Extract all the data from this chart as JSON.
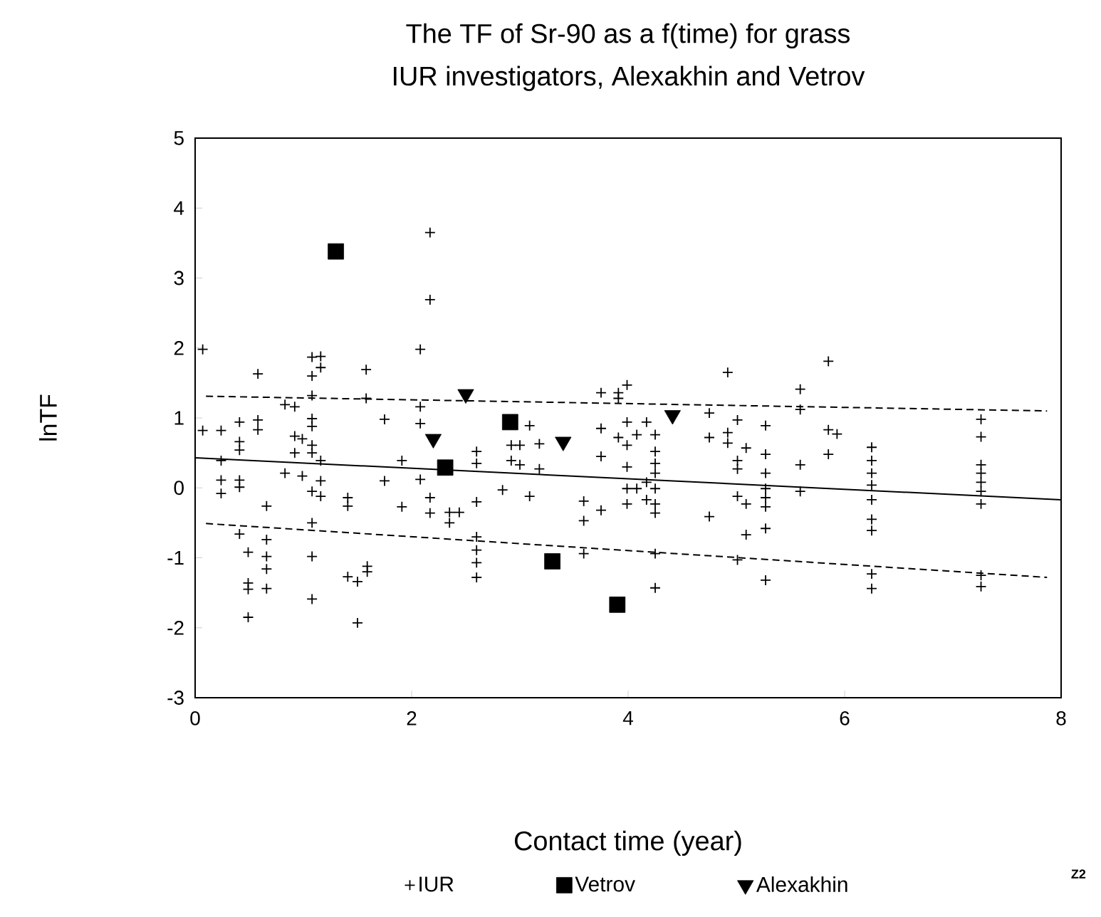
{
  "chart_data": {
    "type": "scatter",
    "title": "The TF of Sr-90 as a f(time) for grass",
    "subtitle": "IUR investigators, Alexakhin and Vetrov",
    "xlabel": "Contact time (year)",
    "ylabel": "lnTF",
    "xlim": [
      0,
      8
    ],
    "ylim": [
      -3,
      5
    ],
    "xticks": [
      0,
      2,
      4,
      6,
      8
    ],
    "yticks": [
      -3,
      -2,
      -1,
      0,
      1,
      2,
      3,
      4,
      5
    ],
    "grid": false,
    "legend": "bottom",
    "annotations": [
      "Z2"
    ],
    "series": [
      {
        "name": "IUR",
        "marker": "cross",
        "color": "#000000",
        "x": [
          0.07,
          0.07,
          0.24,
          0.24,
          0.24,
          0.24,
          0.41,
          0.41,
          0.41,
          0.41,
          0.41,
          0.41,
          0.49,
          0.49,
          0.49,
          0.49,
          0.58,
          0.58,
          0.58,
          0.66,
          0.66,
          0.66,
          0.66,
          0.66,
          0.83,
          0.92,
          0.83,
          0.92,
          0.99,
          0.92,
          0.99,
          1.08,
          1.16,
          1.08,
          1.16,
          1.08,
          1.08,
          1.08,
          1.08,
          1.08,
          1.08,
          1.08,
          1.08,
          1.08,
          1.16,
          1.16,
          1.16,
          1.41,
          1.41,
          1.41,
          1.5,
          1.5,
          1.59,
          1.59,
          1.58,
          1.58,
          1.75,
          1.75,
          1.91,
          1.91,
          2.08,
          2.08,
          2.08,
          2.08,
          2.17,
          2.17,
          2.17,
          2.17,
          2.35,
          2.44,
          2.35,
          2.6,
          2.6,
          2.6,
          2.6,
          2.6,
          2.6,
          2.6,
          2.84,
          2.92,
          2.92,
          3.0,
          3.0,
          3.09,
          3.09,
          3.18,
          3.18,
          3.59,
          3.59,
          3.59,
          3.75,
          3.75,
          3.75,
          3.75,
          3.91,
          3.91,
          3.99,
          3.99,
          3.99,
          3.99,
          3.99,
          3.99,
          3.91,
          4.08,
          4.17,
          4.08,
          4.17,
          4.17,
          4.25,
          4.25,
          4.25,
          4.25,
          4.25,
          4.25,
          4.25,
          4.25,
          4.25,
          4.75,
          4.75,
          4.75,
          4.92,
          4.92,
          4.92,
          5.01,
          5.01,
          5.01,
          5.01,
          5.09,
          5.09,
          5.09,
          5.01,
          5.27,
          5.27,
          5.27,
          5.27,
          5.27,
          5.27,
          5.27,
          5.27,
          5.59,
          5.59,
          5.59,
          5.59,
          5.85,
          5.85,
          5.93,
          5.85,
          6.25,
          6.25,
          6.25,
          6.25,
          6.25,
          6.25,
          6.25,
          6.25,
          6.25,
          7.26,
          7.26,
          7.26,
          7.26,
          7.26,
          7.26,
          7.26,
          7.26,
          7.26
        ],
        "values": [
          1.98,
          0.82,
          0.82,
          0.39,
          0.11,
          -0.08,
          0.94,
          0.66,
          0.54,
          0.11,
          0.01,
          -0.66,
          -0.92,
          -1.36,
          -1.45,
          -1.85,
          1.63,
          0.97,
          0.83,
          -0.26,
          -0.74,
          -0.98,
          -1.16,
          -1.44,
          1.19,
          1.16,
          0.21,
          0.74,
          0.7,
          0.5,
          0.17,
          1.87,
          1.88,
          1.6,
          1.72,
          1.32,
          0.99,
          0.88,
          0.61,
          0.5,
          -0.05,
          -0.5,
          -0.98,
          -1.59,
          0.39,
          0.1,
          -0.12,
          -0.14,
          -0.26,
          -1.27,
          -1.34,
          -1.93,
          -1.12,
          -1.2,
          1.69,
          1.28,
          0.98,
          0.1,
          0.39,
          -0.27,
          1.98,
          1.16,
          0.92,
          0.12,
          3.65,
          2.69,
          -0.14,
          -0.36,
          -0.35,
          -0.35,
          -0.5,
          0.52,
          0.35,
          -0.2,
          -0.7,
          -0.89,
          -1.07,
          -1.28,
          -0.03,
          0.61,
          0.39,
          0.61,
          0.33,
          0.89,
          -0.12,
          0.63,
          0.27,
          -0.19,
          -0.47,
          -0.94,
          1.36,
          0.85,
          0.45,
          -0.32,
          1.36,
          1.28,
          1.47,
          0.94,
          0.61,
          0.3,
          -0.01,
          -0.23,
          0.72,
          0.76,
          0.94,
          -0.01,
          0.08,
          -0.17,
          0.76,
          0.52,
          0.35,
          0.21,
          -0.01,
          -0.23,
          -0.36,
          -0.94,
          -1.43,
          1.07,
          0.72,
          -0.41,
          1.65,
          0.79,
          0.64,
          0.97,
          0.39,
          0.27,
          -0.12,
          0.57,
          -0.23,
          -0.67,
          -1.03,
          0.89,
          0.48,
          0.21,
          -0.01,
          -0.14,
          -0.27,
          -0.58,
          -1.32,
          1.41,
          1.12,
          0.33,
          -0.05,
          1.81,
          0.83,
          0.77,
          0.48,
          0.58,
          0.39,
          0.21,
          0.04,
          -0.17,
          -0.45,
          -0.61,
          -1.23,
          -1.44,
          0.98,
          0.73,
          0.33,
          0.21,
          0.08,
          -0.05,
          -0.23,
          -1.25,
          -1.41
        ]
      },
      {
        "name": "Vetrov",
        "marker": "square",
        "color": "#000000",
        "x": [
          1.3,
          2.31,
          2.91,
          3.3,
          3.9
        ],
        "values": [
          3.38,
          0.29,
          0.94,
          -1.05,
          -1.67
        ]
      },
      {
        "name": "Alexakhin",
        "marker": "triangle",
        "color": "#000000",
        "x": [
          2.2,
          2.5,
          3.4,
          4.41
        ],
        "values": [
          0.7,
          1.34,
          0.66,
          1.04
        ]
      },
      {
        "type": "line",
        "line_style": "solid",
        "marker": "none",
        "color": "#000000",
        "x": [
          0,
          8
        ],
        "values": [
          0.43,
          -0.17
        ]
      },
      {
        "type": "line",
        "line_style": "dashed",
        "marker": "none",
        "color": "#000000",
        "x": [
          0.1,
          7.87
        ],
        "values": [
          1.31,
          1.1
        ]
      },
      {
        "type": "line",
        "line_style": "dashed",
        "marker": "none",
        "color": "#000000",
        "x": [
          0.1,
          7.87
        ],
        "values": [
          -0.51,
          -1.28
        ]
      }
    ]
  }
}
